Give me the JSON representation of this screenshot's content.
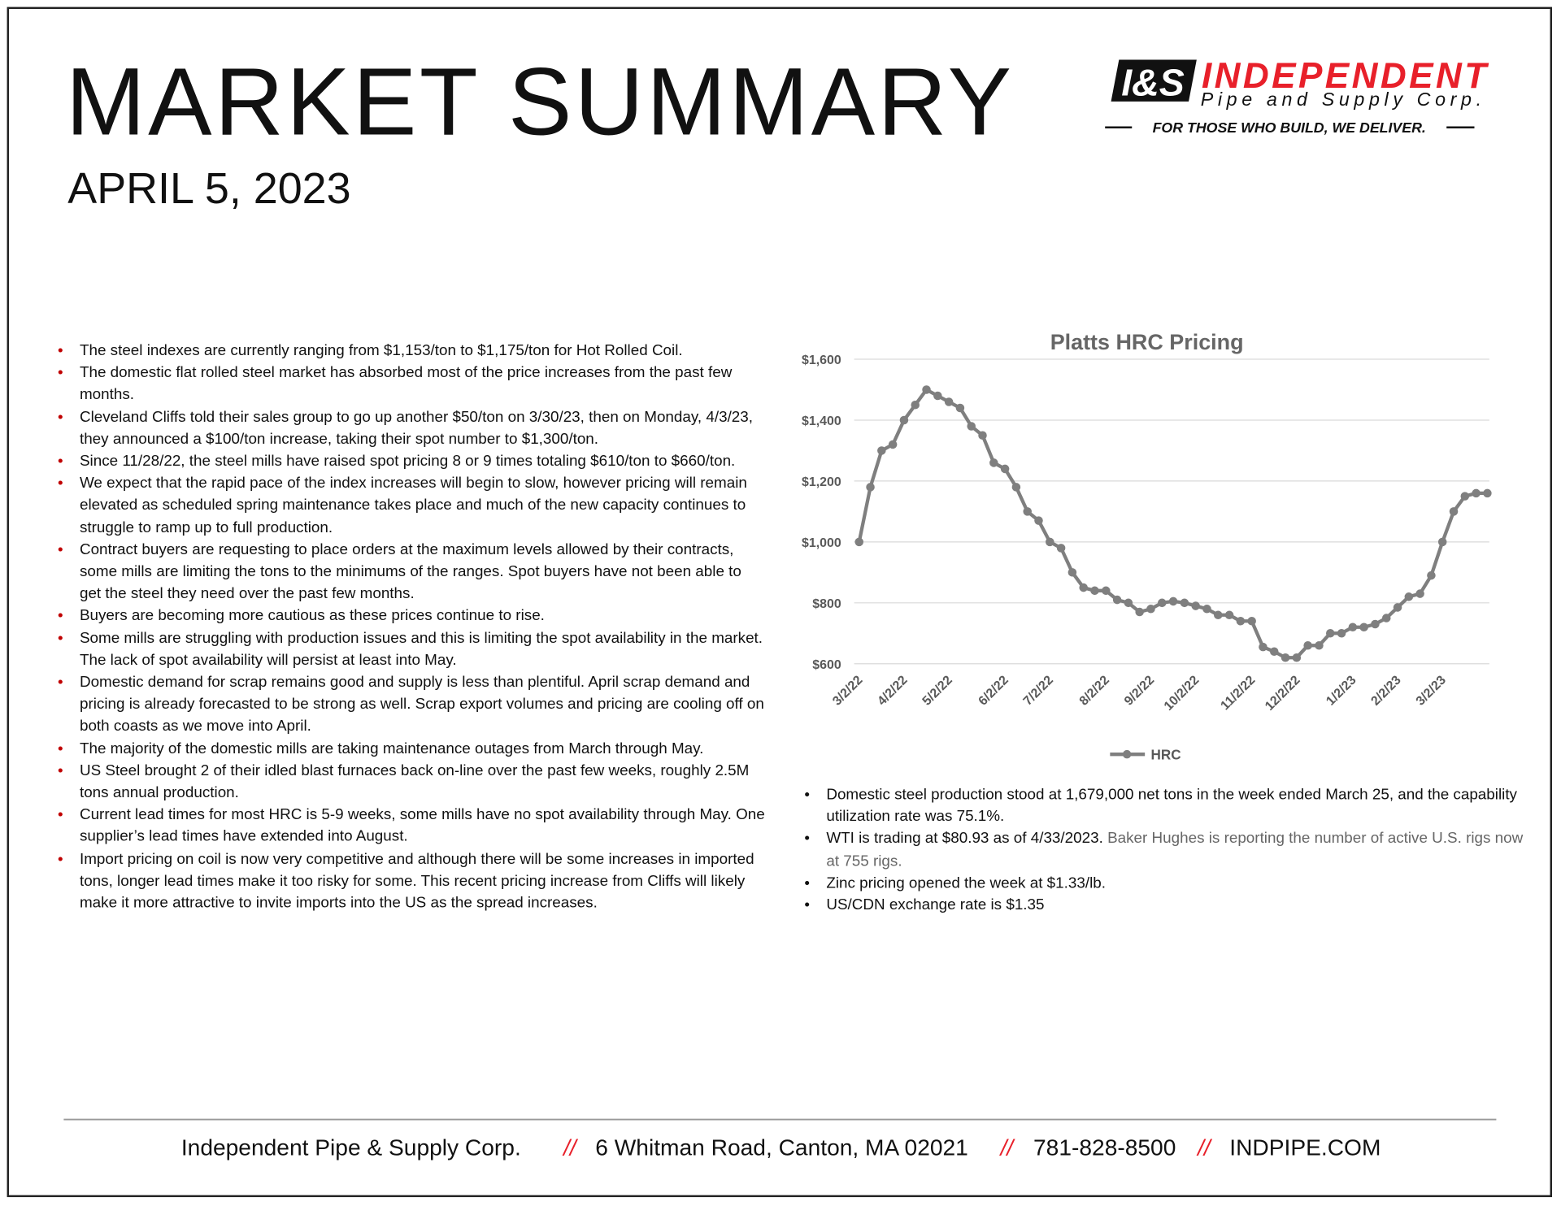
{
  "header": {
    "title": "MARKET SUMMARY",
    "date": "APRIL 5, 2023"
  },
  "logo": {
    "mark": "I&S",
    "name": "INDEPENDENT",
    "subname": "Pipe and Supply Corp.",
    "tagline": "FOR THOSE WHO BUILD, WE DELIVER."
  },
  "left_bullets": [
    "The steel indexes are currently ranging from $1,153/ton to $1,175/ton for Hot Rolled Coil.",
    "The domestic flat rolled steel market has absorbed most of the price increases from the past few months.",
    "Cleveland Cliffs told their sales group to go up another $50/ton on 3/30/23, then on Monday, 4/3/23, they announced a $100/ton increase, taking their spot number to $1,300/ton.",
    "Since 11/28/22, the steel mills have raised spot pricing 8 or 9 times totaling $610/ton to $660/ton.",
    "We expect that the rapid pace of the index increases will begin to slow, however pricing will remain elevated as scheduled spring maintenance takes place and much of the new capacity continues to struggle to ramp up to full production.",
    "Contract buyers are requesting to place orders at the maximum levels allowed by their contracts, some mills are limiting the tons to the minimums of the ranges. Spot buyers have not been able to get the steel they need over the past few months.",
    "Buyers are becoming more cautious as these prices continue to rise.",
    "Some mills are struggling with production issues and this is limiting the spot availability in the market. The lack of spot availability will persist at least into May.",
    "Domestic demand for scrap remains good and supply is less than plentiful.   April scrap demand and pricing is already forecasted to be strong as well. Scrap export volumes and pricing are cooling off on both coasts as we move into April.",
    "The majority of the domestic mills are taking maintenance outages from March through May.",
    "US Steel brought 2 of their idled blast furnaces back on-line over the past few weeks, roughly 2.5M tons annual production.",
    "Current lead times for most HRC is 5-9 weeks, some mills have no spot availability through May.  One supplier’s lead times have extended into August.",
    "Import pricing on coil is now very competitive and although there will be some increases in imported tons, longer lead times make it too risky for some.  This recent pricing increase from Cliffs will likely make it more attractive to invite imports into the US as the spread increases."
  ],
  "right_bullets": [
    [
      "Domestic steel production stood at 1,679,000 net tons in the week ended March 25, and the capability utilization rate was 75.1%."
    ],
    [
      "WTI is trading at $80.93 as of 4/33/2023. ",
      "Baker Hughes is reporting the number of active U.S. rigs now at 755 rigs."
    ],
    [
      "Zinc pricing opened the week at $1.33/lb."
    ],
    [
      "US/CDN exchange rate is $1.35"
    ]
  ],
  "chart_data": {
    "type": "line",
    "title": "Platts HRC Pricing",
    "categories": [
      "3/2/22",
      null,
      null,
      null,
      "4/2/22",
      null,
      null,
      null,
      "5/2/22",
      null,
      null,
      null,
      null,
      "6/2/22",
      null,
      null,
      null,
      "7/2/22",
      null,
      null,
      null,
      null,
      "8/2/22",
      null,
      null,
      null,
      "9/2/22",
      null,
      null,
      null,
      "10/2/22",
      null,
      null,
      null,
      null,
      "11/2/22",
      null,
      null,
      null,
      "12/2/22",
      null,
      null,
      null,
      null,
      "1/2/23",
      null,
      null,
      null,
      "2/2/23",
      null,
      null,
      null,
      "3/2/23",
      null,
      null,
      null,
      null
    ],
    "series": [
      {
        "name": "HRC",
        "color": "#7f7f7f",
        "values": [
          1000,
          1180,
          1300,
          1320,
          1400,
          1450,
          1500,
          1480,
          1460,
          1440,
          1380,
          1350,
          1260,
          1240,
          1180,
          1100,
          1070,
          1000,
          980,
          900,
          850,
          840,
          840,
          810,
          800,
          770,
          780,
          800,
          805,
          800,
          790,
          780,
          760,
          760,
          740,
          740,
          655,
          640,
          620,
          620,
          660,
          660,
          700,
          700,
          720,
          720,
          730,
          750,
          785,
          820,
          830,
          890,
          1000,
          1100,
          1150,
          1160,
          1160
        ]
      }
    ],
    "ylim": [
      600,
      1600
    ],
    "yticks": [
      {
        "value": 600,
        "label": "$600"
      },
      {
        "value": 800,
        "label": "$800"
      },
      {
        "value": 1000,
        "label": "$1,000"
      },
      {
        "value": 1200,
        "label": "$1,200"
      },
      {
        "value": 1400,
        "label": "$1,400"
      },
      {
        "value": 1600,
        "label": "$1,600"
      }
    ],
    "grid": true,
    "legend": "bottom"
  },
  "footer": {
    "company": "Independent Pipe & Supply Corp.",
    "address": "6 Whitman Road, Canton, MA 02021",
    "phone": "781-828-8500",
    "website": "INDPIPE.COM",
    "separator": "//"
  }
}
